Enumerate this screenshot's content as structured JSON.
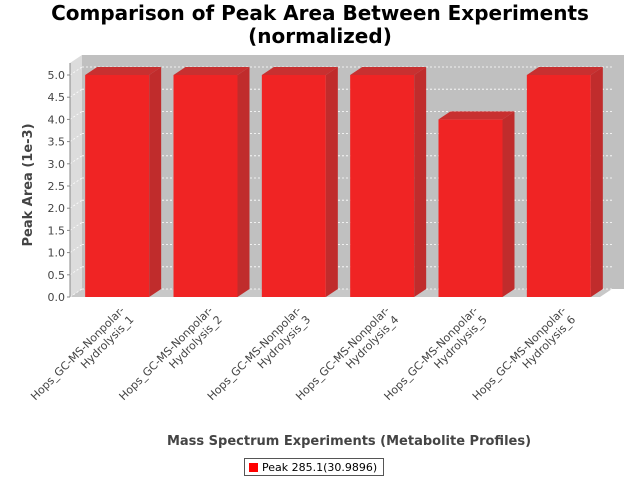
{
  "chart_data": {
    "type": "bar",
    "title_lines": [
      "Comparison of Peak Area Between Experiments",
      "(normalized)"
    ],
    "xlabel": "Mass Spectrum Experiments (Metabolite Profiles)",
    "ylabel": "Peak Area (1e-3)",
    "categories": [
      [
        "Hops_GC-MS-Nonpolar-",
        "Hydrolysis_1"
      ],
      [
        "Hops_GC-MS-Nonpolar-",
        "Hydrolysis_2"
      ],
      [
        "Hops_GC-MS-Nonpolar-",
        "Hydrolysis_3"
      ],
      [
        "Hops_GC-MS-Nonpolar-",
        "Hydrolysis_4"
      ],
      [
        "Hops_GC-MS-Nonpolar-",
        "Hydrolysis_5"
      ],
      [
        "Hops_GC-MS-Nonpolar-",
        "Hydrolysis_6"
      ]
    ],
    "series": [
      {
        "name": "Peak 285.1(30.9896)",
        "values": [
          5.0,
          5.0,
          5.0,
          5.0,
          4.0,
          5.0
        ]
      }
    ],
    "ylim": [
      0,
      5.0
    ],
    "yticks": [
      "0.0",
      "0.5",
      "1.0",
      "1.5",
      "2.0",
      "2.5",
      "3.0",
      "3.5",
      "4.0",
      "4.5",
      "5.0"
    ],
    "grid": true,
    "legend_position": "bottom",
    "colors": {
      "bar_front": "#f02424",
      "bar_top": "#c83030",
      "bar_side": "#c02c2c",
      "plot_back": "#c0c0c0",
      "plot_side": "#dcdcdc",
      "plot_floor": "#c8c8c8",
      "legend_swatch": "#ff0000"
    }
  }
}
